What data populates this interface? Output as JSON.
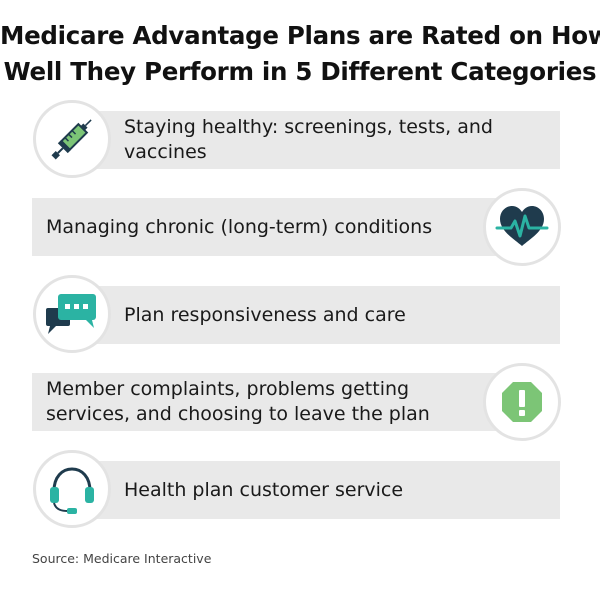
{
  "title": {
    "line1": "Medicare Advantage Plans are Rated on How",
    "line2": "Well They Perform in 5 Different Categories"
  },
  "categories": [
    {
      "text": "Staying healthy: screenings, tests, and vaccines",
      "icon": "syringe-icon"
    },
    {
      "text": "Managing chronic (long-term) conditions",
      "icon": "heartbeat-icon"
    },
    {
      "text": "Plan responsiveness and care",
      "icon": "chat-bubbles-icon"
    },
    {
      "text": "Member complaints, problems getting services, and choosing to leave the plan",
      "icon": "warning-octagon-icon"
    },
    {
      "text": "Health plan customer service",
      "icon": "headset-icon"
    }
  ],
  "colors": {
    "teal": "#2bb3a3",
    "navy": "#1f3b4d",
    "green": "#7cc576",
    "bar": "#e9e9e9"
  },
  "source": "Source: Medicare Interactive"
}
